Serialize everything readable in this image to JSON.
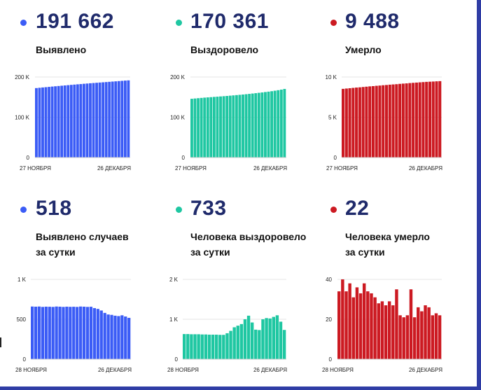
{
  "colors": {
    "blue": "#3b5cf6",
    "green": "#1fc7a2",
    "red": "#cc1a22",
    "number": "#1f2a6b"
  },
  "panels": [
    {
      "value": "191 662",
      "label": [
        "Выявлено"
      ],
      "color": "blue"
    },
    {
      "value": "170 361",
      "label": [
        "Выздоровело"
      ],
      "color": "green"
    },
    {
      "value": "9 488",
      "label": [
        "Умерло"
      ],
      "color": "red"
    },
    {
      "value": "518",
      "label": [
        "Выявлено случаев",
        "за сутки"
      ],
      "color": "blue"
    },
    {
      "value": "733",
      "label": [
        "Человека выздоровело",
        "за сутки"
      ],
      "color": "green"
    },
    {
      "value": "22",
      "label": [
        "Человека умерло",
        "за сутки"
      ],
      "color": "red"
    }
  ],
  "chart_data": [
    {
      "type": "bar",
      "color": "blue",
      "ylim": [
        0,
        200000
      ],
      "yticks": [
        0,
        100000,
        200000
      ],
      "ytick_labels": [
        "0",
        "100 K",
        "200 K"
      ],
      "x_start_label": "27 НОЯБРЯ",
      "x_end_label": "26 ДЕКАБРЯ",
      "values": [
        172500,
        173300,
        174100,
        174800,
        175500,
        176300,
        177000,
        177700,
        178400,
        179100,
        179800,
        180500,
        181200,
        181900,
        182500,
        183200,
        183800,
        184500,
        185100,
        185700,
        186300,
        186900,
        187500,
        188100,
        188700,
        189300,
        189900,
        190500,
        191100,
        191662
      ]
    },
    {
      "type": "bar",
      "color": "green",
      "ylim": [
        0,
        200000
      ],
      "yticks": [
        0,
        100000,
        200000
      ],
      "ytick_labels": [
        "0",
        "100 K",
        "200 K"
      ],
      "x_start_label": "27 НОЯБРЯ",
      "x_end_label": "26 ДЕКАБРЯ",
      "values": [
        146000,
        146700,
        147400,
        148100,
        148800,
        149400,
        150000,
        150600,
        151200,
        151800,
        152400,
        153000,
        153700,
        154400,
        155100,
        155800,
        156500,
        157300,
        158100,
        159000,
        159900,
        160800,
        161700,
        162700,
        163700,
        164800,
        166000,
        167300,
        168700,
        170361
      ]
    },
    {
      "type": "bar",
      "color": "red",
      "ylim": [
        0,
        10000
      ],
      "yticks": [
        0,
        5000,
        10000
      ],
      "ytick_labels": [
        "0",
        "5 K",
        "10 K"
      ],
      "x_start_label": "27 НОЯБРЯ",
      "x_end_label": "26 ДЕКАБРЯ",
      "values": [
        8530,
        8570,
        8610,
        8650,
        8690,
        8720,
        8760,
        8800,
        8840,
        8870,
        8910,
        8940,
        8980,
        9010,
        9050,
        9080,
        9110,
        9150,
        9180,
        9210,
        9250,
        9280,
        9310,
        9340,
        9370,
        9400,
        9420,
        9440,
        9466,
        9488
      ]
    },
    {
      "type": "bar",
      "color": "blue",
      "ylim": [
        0,
        1000
      ],
      "yticks": [
        0,
        500,
        1000
      ],
      "ytick_labels": [
        "0",
        "500",
        "1 K"
      ],
      "x_start_label": "28 НОЯБРЯ",
      "x_end_label": "26 ДЕКАБРЯ",
      "values": [
        660,
        658,
        660,
        655,
        658,
        657,
        655,
        660,
        658,
        655,
        658,
        656,
        657,
        655,
        660,
        658,
        655,
        657,
        640,
        630,
        610,
        580,
        560,
        555,
        545,
        540,
        550,
        535,
        518
      ]
    },
    {
      "type": "bar",
      "color": "green",
      "ylim": [
        0,
        2000
      ],
      "yticks": [
        0,
        1000,
        2000
      ],
      "ytick_labels": [
        "0",
        "1 K",
        "2 K"
      ],
      "x_start_label": "28 НОЯБРЯ",
      "x_end_label": "26 ДЕКАБРЯ",
      "values": [
        630,
        630,
        625,
        625,
        625,
        620,
        620,
        615,
        615,
        615,
        610,
        610,
        650,
        710,
        800,
        840,
        880,
        1000,
        1090,
        920,
        740,
        730,
        1000,
        1030,
        1020,
        1060,
        1100,
        940,
        733
      ]
    },
    {
      "type": "bar",
      "color": "red",
      "ylim": [
        0,
        40
      ],
      "yticks": [
        0,
        20,
        40
      ],
      "ytick_labels": [
        "0",
        "20",
        "40"
      ],
      "x_start_label": "28 НОЯБРЯ",
      "x_end_label": "26 ДЕКАБРЯ",
      "values": [
        34,
        40,
        34,
        38,
        31,
        36,
        33,
        38,
        34,
        33,
        31,
        28,
        29,
        27,
        29,
        27,
        35,
        22,
        21,
        22,
        35,
        21,
        26,
        24,
        27,
        26,
        22,
        23,
        22
      ]
    }
  ]
}
